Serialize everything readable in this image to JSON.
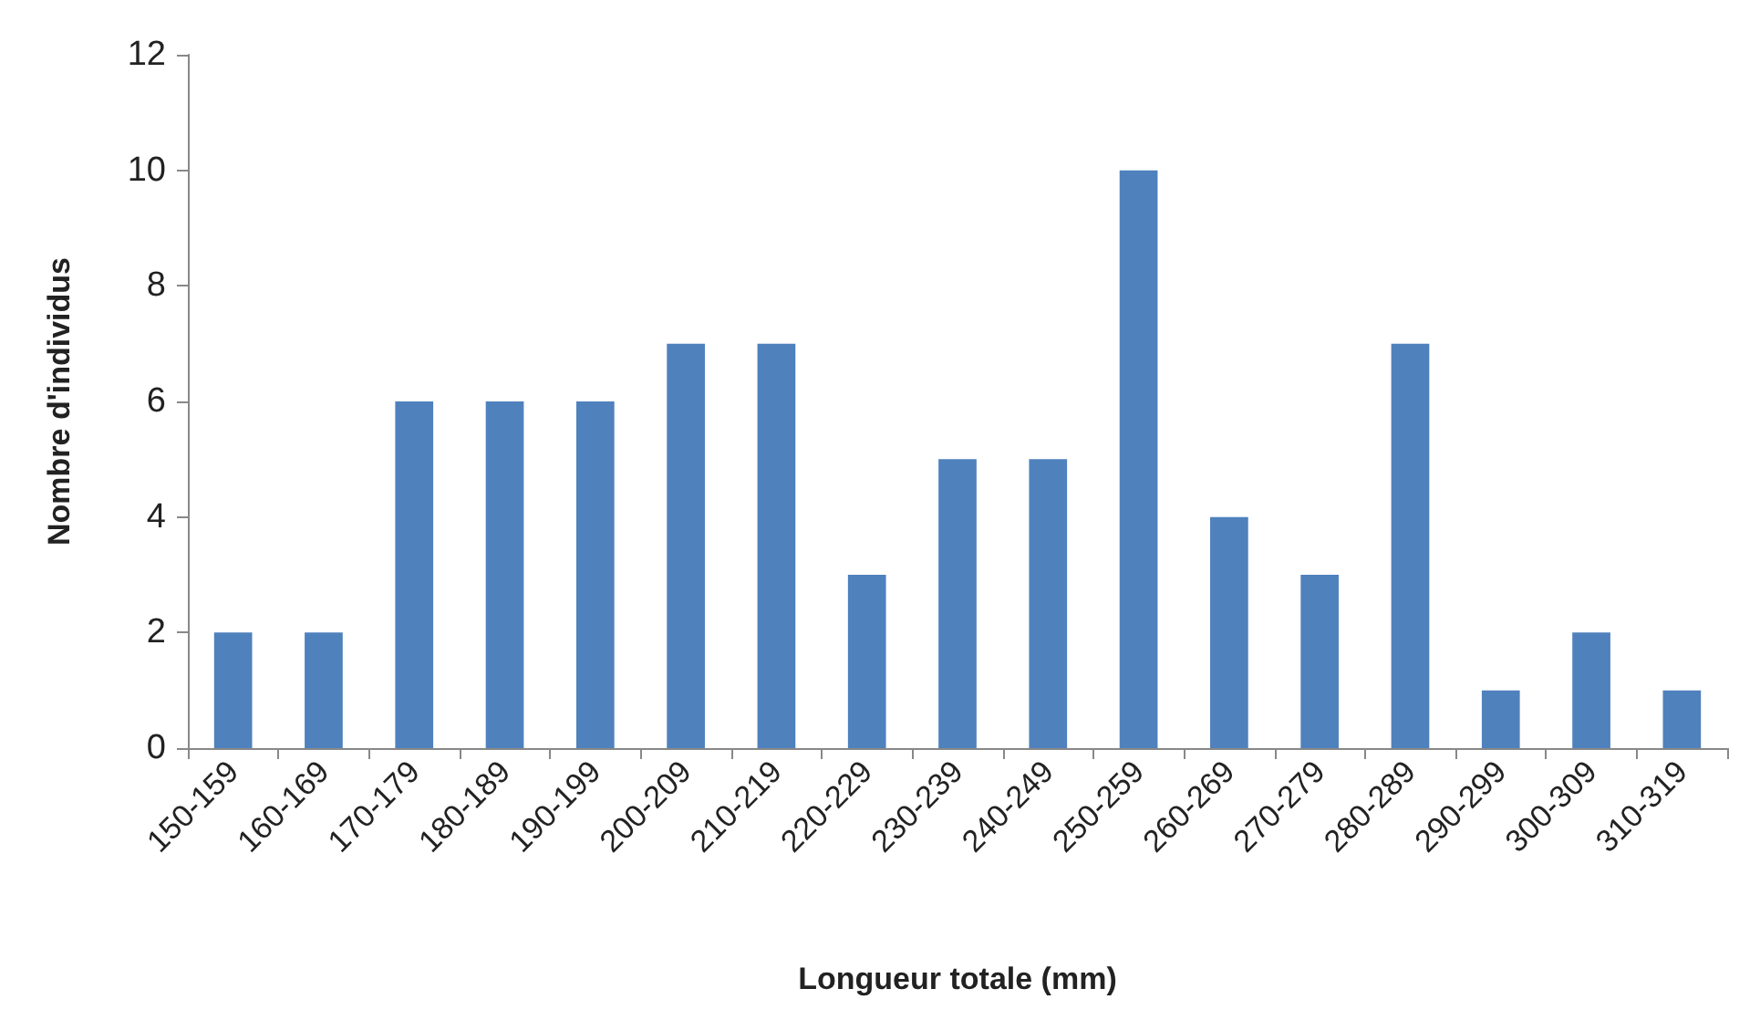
{
  "chart_data": {
    "type": "bar",
    "xlabel": "Longueur totale (mm)",
    "ylabel": "Nombre d'individus",
    "categories": [
      "150-159",
      "160-169",
      "170-179",
      "180-189",
      "190-199",
      "200-209",
      "210-219",
      "220-229",
      "230-239",
      "240-249",
      "250-259",
      "260-269",
      "270-279",
      "280-289",
      "290-299",
      "300-309",
      "310-319"
    ],
    "values": [
      2,
      2,
      6,
      6,
      6,
      7,
      7,
      3,
      5,
      5,
      10,
      4,
      3,
      7,
      1,
      2,
      1
    ],
    "color": "#4f81bd",
    "ylim": [
      0,
      12
    ],
    "yticks": [
      0,
      2,
      4,
      6,
      8,
      10,
      12
    ],
    "grid": false
  }
}
